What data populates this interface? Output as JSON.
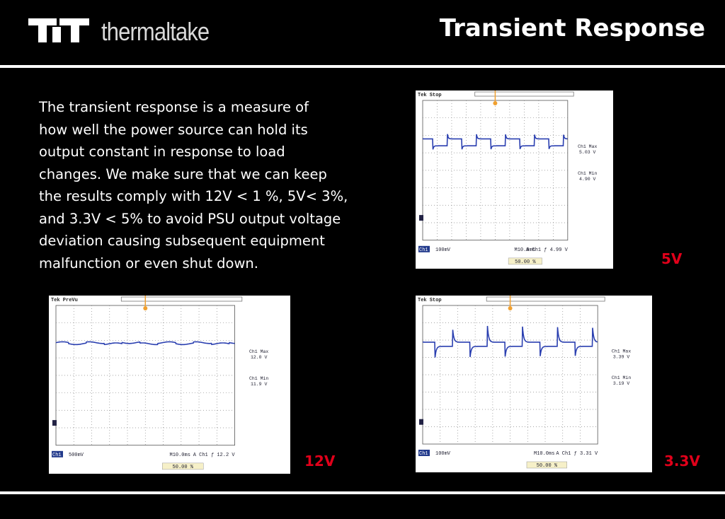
{
  "header": {
    "brand": "thermaltake",
    "title": "Transient Response"
  },
  "description": {
    "lines": [
      "The transient response is a measure of",
      "how well the power source can hold its",
      "output constant in response to load",
      "changes. We make sure that we can keep",
      "the results comply with 12V < 1 %, 5V< 3%,",
      "and 3.3V < 5% to avoid PSU output voltage",
      "deviation causing subsequent equipment",
      "malfunction or even shut down."
    ]
  },
  "scopes": [
    {
      "status": "Tek Stop",
      "max_label": "Ch1 Max",
      "max": "5.03 V",
      "min_label": "Ch1 Min",
      "min": "4.90 V",
      "channel": "Ch1",
      "scale": "100mV",
      "time": "M10.0ms",
      "trigger": "A  Ch1  ƒ  4.99 V",
      "position": "50.00 %",
      "label": "5V"
    },
    {
      "status": "Tek PreVu",
      "max_label": "Ch1 Max",
      "max": "12.0 V",
      "min_label": "Ch1 Min",
      "min": "11.9 V",
      "channel": "Ch1",
      "scale": "500mV",
      "time": "M10.0ms",
      "trigger": "A  Ch1  ƒ  12.2 V",
      "position": "50.00 %",
      "label": "12V"
    },
    {
      "status": "Tek Stop",
      "max_label": "Ch1 Max",
      "max": "3.39 V",
      "min_label": "Ch1 Min",
      "min": "3.19 V",
      "channel": "Ch1",
      "scale": "100mV",
      "time": "M10.0ms",
      "trigger": "A  Ch1  ƒ  3.31 V",
      "position": "50.00 %",
      "label": "3.3V"
    }
  ]
}
